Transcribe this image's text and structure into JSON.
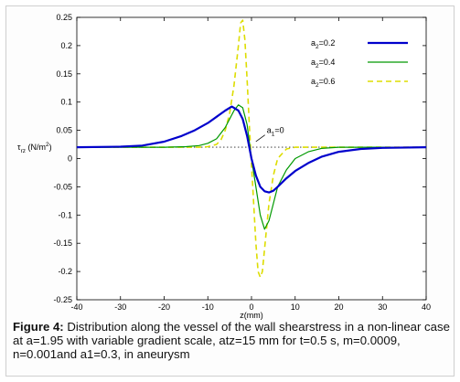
{
  "chart_data": {
    "type": "line",
    "xlabel": "z(mm)",
    "ylabel": "τ",
    "ylabel_sub": "rz",
    "ylabel_unit_pre": " (N/m",
    "ylabel_unit_sup": "2",
    "ylabel_unit_post": ")",
    "xlim": [
      -40,
      40
    ],
    "ylim": [
      -0.25,
      0.25
    ],
    "xticks": [
      -40,
      -30,
      -20,
      -10,
      0,
      10,
      20,
      30,
      40
    ],
    "yticks": [
      -0.25,
      -0.2,
      -0.15,
      -0.1,
      -0.05,
      0,
      0.05,
      0.1,
      0.15,
      0.2,
      0.25
    ],
    "ytick_labels": [
      "-0.25",
      "-0.2",
      "-0.15",
      "-0.1",
      "-0.05",
      "0",
      "0.05",
      "0.1",
      "0.15",
      "0.2",
      "0.25"
    ],
    "grid": false,
    "legend_position": "top-right",
    "series": [
      {
        "name": "a2=0.2",
        "name_main": "a",
        "name_sub": "2",
        "name_post": "=0.2",
        "color": "#0000cc",
        "dash": "solid",
        "width": 2.2,
        "x": [
          -40,
          -30,
          -25,
          -20,
          -16,
          -13,
          -10,
          -8,
          -6,
          -4.5,
          -3,
          -2,
          -1,
          0,
          1,
          2,
          3,
          4,
          5,
          6,
          8,
          10,
          13,
          16,
          20,
          25,
          30,
          40
        ],
        "y": [
          0.02,
          0.021,
          0.023,
          0.03,
          0.04,
          0.05,
          0.063,
          0.074,
          0.085,
          0.092,
          0.085,
          0.07,
          0.04,
          0.0,
          -0.03,
          -0.05,
          -0.058,
          -0.06,
          -0.057,
          -0.05,
          -0.035,
          -0.022,
          -0.008,
          0.003,
          0.012,
          0.017,
          0.019,
          0.02
        ]
      },
      {
        "name": "a2=0.4",
        "name_main": "a",
        "name_sub": "2",
        "name_post": "=0.4",
        "color": "#009900",
        "dash": "solid",
        "width": 1.2,
        "x": [
          -40,
          -20,
          -15,
          -12,
          -10,
          -8,
          -6,
          -5,
          -4,
          -3,
          -2,
          -1,
          0,
          1,
          2,
          3,
          4,
          5,
          6,
          8,
          10,
          13,
          16,
          20,
          40
        ],
        "y": [
          0.02,
          0.02,
          0.021,
          0.023,
          0.027,
          0.035,
          0.055,
          0.07,
          0.085,
          0.095,
          0.09,
          0.06,
          0.0,
          -0.05,
          -0.1,
          -0.125,
          -0.11,
          -0.08,
          -0.05,
          -0.02,
          0.0,
          0.012,
          0.018,
          0.02,
          0.02
        ]
      },
      {
        "name": "a2=0.6",
        "name_main": "a",
        "name_sub": "2",
        "name_post": "=0.6",
        "color": "#dddd00",
        "dash": "dashed",
        "width": 1.6,
        "x": [
          -40,
          -20,
          -12,
          -10,
          -8,
          -7,
          -6,
          -5,
          -4,
          -3,
          -2.5,
          -2,
          -1.5,
          -1,
          -0.5,
          0,
          0.5,
          1,
          1.5,
          2,
          2.5,
          3,
          4,
          5,
          6,
          8,
          10,
          12,
          20,
          40
        ],
        "y": [
          0.02,
          0.02,
          0.02,
          0.021,
          0.025,
          0.033,
          0.05,
          0.08,
          0.13,
          0.2,
          0.24,
          0.245,
          0.21,
          0.14,
          0.06,
          -0.01,
          -0.08,
          -0.15,
          -0.2,
          -0.21,
          -0.2,
          -0.16,
          -0.08,
          -0.03,
          0.0,
          0.017,
          0.02,
          0.02,
          0.02,
          0.02
        ]
      },
      {
        "name": "a1=0",
        "color": "#555555",
        "dash": "dotted",
        "width": 1.1,
        "x": [
          -40,
          40
        ],
        "y": [
          0.02,
          0.02
        ]
      }
    ],
    "annotations": [
      {
        "text_main": "a",
        "text_sub": "1",
        "text_post": "=0",
        "x": 3.5,
        "y": 0.045
      }
    ]
  },
  "caption": {
    "label": "Figure 4:",
    "text": " Distribution along the vessel of the wall shearstress in a non-linear case at a=1.95 with variable gradient scale, atz=15 mm for t=0.5 s, m=0.0009, n=0.001and a1=0.3, in aneurysm"
  }
}
